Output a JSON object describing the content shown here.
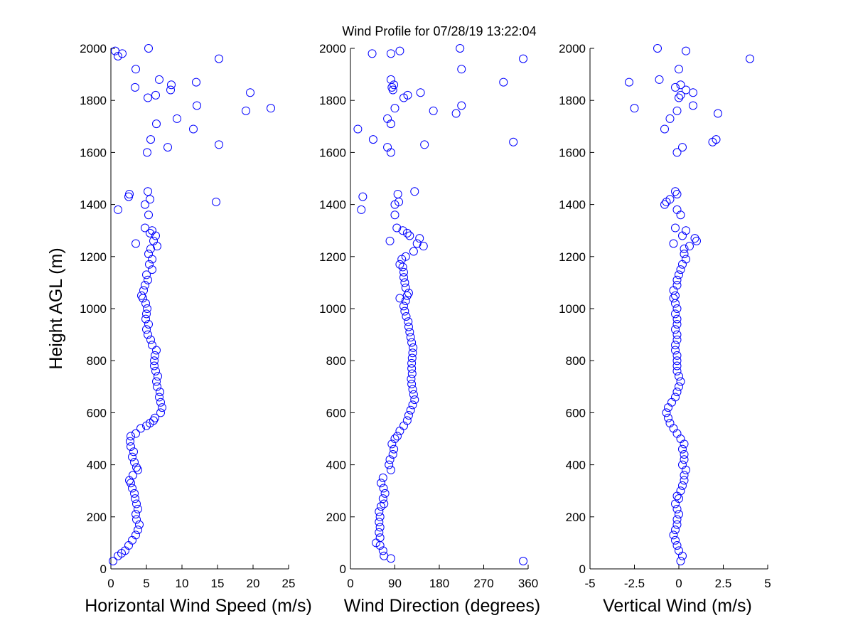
{
  "figure": {
    "title": "Wind Profile for  07/28/19 13:22:04",
    "marker_color": "#0000ff"
  },
  "chart_data": [
    {
      "type": "scatter",
      "xlabel": "Horizontal Wind Speed (m/s)",
      "ylabel": "Height AGL (m)",
      "xlim": [
        0,
        25
      ],
      "ylim": [
        0,
        2000
      ],
      "xticks": [
        0,
        5,
        10,
        15,
        20,
        25
      ],
      "xtick_labels": [
        "0",
        "5",
        "10",
        "15",
        "20",
        "25"
      ],
      "yticks": [
        0,
        200,
        400,
        600,
        800,
        1000,
        1200,
        1400,
        1600,
        1800,
        2000
      ],
      "ytick_labels": [
        "0",
        "200",
        "400",
        "600",
        "800",
        "1000",
        "1200",
        "1400",
        "1600",
        "1800",
        "2000"
      ],
      "points": [
        [
          0.3,
          30
        ],
        [
          1.0,
          50
        ],
        [
          1.5,
          60
        ],
        [
          2.0,
          70
        ],
        [
          2.5,
          90
        ],
        [
          3.0,
          110
        ],
        [
          3.5,
          130
        ],
        [
          3.8,
          150
        ],
        [
          4.0,
          170
        ],
        [
          3.6,
          190
        ],
        [
          3.5,
          210
        ],
        [
          3.8,
          230
        ],
        [
          3.6,
          250
        ],
        [
          3.4,
          270
        ],
        [
          3.3,
          290
        ],
        [
          3.0,
          310
        ],
        [
          2.8,
          330
        ],
        [
          2.6,
          340
        ],
        [
          3.1,
          360
        ],
        [
          3.8,
          380
        ],
        [
          3.6,
          390
        ],
        [
          3.3,
          410
        ],
        [
          3.0,
          430
        ],
        [
          3.2,
          450
        ],
        [
          2.8,
          470
        ],
        [
          2.7,
          490
        ],
        [
          2.8,
          510
        ],
        [
          3.5,
          520
        ],
        [
          4.2,
          540
        ],
        [
          5.0,
          550
        ],
        [
          5.5,
          560
        ],
        [
          6.0,
          570
        ],
        [
          6.2,
          580
        ],
        [
          7.0,
          600
        ],
        [
          7.2,
          620
        ],
        [
          7.0,
          640
        ],
        [
          6.8,
          660
        ],
        [
          6.9,
          680
        ],
        [
          6.5,
          700
        ],
        [
          6.4,
          720
        ],
        [
          6.6,
          740
        ],
        [
          6.3,
          760
        ],
        [
          6.1,
          780
        ],
        [
          6.1,
          800
        ],
        [
          6.2,
          820
        ],
        [
          6.4,
          840
        ],
        [
          5.8,
          860
        ],
        [
          5.6,
          880
        ],
        [
          5.2,
          900
        ],
        [
          5.0,
          920
        ],
        [
          5.3,
          940
        ],
        [
          4.9,
          960
        ],
        [
          5.0,
          980
        ],
        [
          5.1,
          1000
        ],
        [
          4.9,
          1020
        ],
        [
          4.5,
          1040
        ],
        [
          4.3,
          1050
        ],
        [
          4.6,
          1070
        ],
        [
          4.8,
          1090
        ],
        [
          5.2,
          1110
        ],
        [
          5.0,
          1130
        ],
        [
          5.8,
          1150
        ],
        [
          5.4,
          1170
        ],
        [
          5.8,
          1190
        ],
        [
          5.3,
          1210
        ],
        [
          5.6,
          1230
        ],
        [
          6.5,
          1240
        ],
        [
          6.0,
          1260
        ],
        [
          6.3,
          1280
        ],
        [
          5.5,
          1290
        ],
        [
          5.8,
          1300
        ],
        [
          4.8,
          1310
        ],
        [
          3.5,
          1250
        ],
        [
          5.3,
          1360
        ],
        [
          5.5,
          1420
        ],
        [
          5.2,
          1450
        ],
        [
          4.8,
          1400
        ],
        [
          2.5,
          1430
        ],
        [
          1.0,
          1380
        ],
        [
          2.6,
          1440
        ],
        [
          14.8,
          1410
        ],
        [
          0.6,
          1990
        ],
        [
          1.0,
          1970
        ],
        [
          1.6,
          1980
        ],
        [
          5.3,
          2000
        ],
        [
          15.2,
          1960
        ],
        [
          3.5,
          1920
        ],
        [
          6.8,
          1880
        ],
        [
          12.0,
          1870
        ],
        [
          3.4,
          1850
        ],
        [
          8.5,
          1860
        ],
        [
          8.4,
          1840
        ],
        [
          6.3,
          1820
        ],
        [
          5.2,
          1810
        ],
        [
          19.6,
          1830
        ],
        [
          12.1,
          1780
        ],
        [
          19.0,
          1760
        ],
        [
          22.5,
          1770
        ],
        [
          9.3,
          1730
        ],
        [
          6.4,
          1710
        ],
        [
          11.6,
          1690
        ],
        [
          5.6,
          1650
        ],
        [
          15.2,
          1630
        ],
        [
          8.0,
          1620
        ],
        [
          5.1,
          1600
        ]
      ]
    },
    {
      "type": "scatter",
      "xlabel": "Wind Direction (degrees)",
      "ylabel": "",
      "xlim": [
        0,
        360
      ],
      "ylim": [
        0,
        2000
      ],
      "xticks": [
        0,
        90,
        180,
        270,
        360
      ],
      "xtick_labels": [
        "0",
        "90",
        "180",
        "270",
        "360"
      ],
      "yticks": [
        0,
        200,
        400,
        600,
        800,
        1000,
        1200,
        1400,
        1600,
        1800,
        2000
      ],
      "ytick_labels": [
        "0",
        "200",
        "400",
        "600",
        "800",
        "1000",
        "1200",
        "1400",
        "1600",
        "1800",
        "2000"
      ],
      "points": [
        [
          350,
          30
        ],
        [
          82,
          40
        ],
        [
          68,
          50
        ],
        [
          66,
          70
        ],
        [
          60,
          90
        ],
        [
          52,
          100
        ],
        [
          60,
          120
        ],
        [
          58,
          140
        ],
        [
          60,
          160
        ],
        [
          58,
          180
        ],
        [
          60,
          200
        ],
        [
          58,
          220
        ],
        [
          62,
          240
        ],
        [
          68,
          250
        ],
        [
          66,
          270
        ],
        [
          70,
          290
        ],
        [
          67,
          310
        ],
        [
          62,
          330
        ],
        [
          66,
          350
        ],
        [
          82,
          380
        ],
        [
          78,
          400
        ],
        [
          80,
          420
        ],
        [
          86,
          440
        ],
        [
          88,
          460
        ],
        [
          84,
          480
        ],
        [
          90,
          500
        ],
        [
          95,
          510
        ],
        [
          100,
          530
        ],
        [
          108,
          550
        ],
        [
          115,
          570
        ],
        [
          118,
          590
        ],
        [
          122,
          610
        ],
        [
          126,
          630
        ],
        [
          130,
          650
        ],
        [
          128,
          670
        ],
        [
          126,
          690
        ],
        [
          124,
          710
        ],
        [
          123,
          730
        ],
        [
          125,
          750
        ],
        [
          124,
          770
        ],
        [
          124,
          790
        ],
        [
          125,
          810
        ],
        [
          126,
          830
        ],
        [
          127,
          850
        ],
        [
          124,
          870
        ],
        [
          122,
          890
        ],
        [
          120,
          910
        ],
        [
          118,
          930
        ],
        [
          117,
          950
        ],
        [
          113,
          970
        ],
        [
          110,
          990
        ],
        [
          108,
          1010
        ],
        [
          112,
          1030
        ],
        [
          100,
          1040
        ],
        [
          115,
          1050
        ],
        [
          118,
          1060
        ],
        [
          112,
          1080
        ],
        [
          110,
          1100
        ],
        [
          108,
          1120
        ],
        [
          108,
          1140
        ],
        [
          106,
          1160
        ],
        [
          100,
          1170
        ],
        [
          104,
          1190
        ],
        [
          112,
          1200
        ],
        [
          128,
          1220
        ],
        [
          148,
          1240
        ],
        [
          135,
          1250
        ],
        [
          140,
          1270
        ],
        [
          120,
          1280
        ],
        [
          115,
          1290
        ],
        [
          106,
          1300
        ],
        [
          94,
          1310
        ],
        [
          80,
          1260
        ],
        [
          90,
          1360
        ],
        [
          98,
          1410
        ],
        [
          90,
          1400
        ],
        [
          96,
          1440
        ],
        [
          130,
          1450
        ],
        [
          25,
          1430
        ],
        [
          22,
          1380
        ],
        [
          44,
          1980
        ],
        [
          82,
          1980
        ],
        [
          100,
          1990
        ],
        [
          222,
          2000
        ],
        [
          350,
          1960
        ],
        [
          225,
          1920
        ],
        [
          82,
          1880
        ],
        [
          310,
          1870
        ],
        [
          88,
          1860
        ],
        [
          84,
          1850
        ],
        [
          86,
          1840
        ],
        [
          116,
          1820
        ],
        [
          108,
          1810
        ],
        [
          142,
          1830
        ],
        [
          225,
          1780
        ],
        [
          90,
          1770
        ],
        [
          168,
          1760
        ],
        [
          214,
          1750
        ],
        [
          75,
          1730
        ],
        [
          82,
          1710
        ],
        [
          15,
          1690
        ],
        [
          46,
          1650
        ],
        [
          330,
          1640
        ],
        [
          150,
          1630
        ],
        [
          75,
          1620
        ],
        [
          82,
          1600
        ]
      ]
    },
    {
      "type": "scatter",
      "xlabel": "Vertical Wind (m/s)",
      "ylabel": "",
      "xlim": [
        -5,
        5
      ],
      "ylim": [
        0,
        2000
      ],
      "xticks": [
        -5,
        -2.5,
        0,
        2.5,
        5
      ],
      "xtick_labels": [
        "-5",
        "-2.5",
        "0",
        "2.5",
        "5"
      ],
      "yticks": [
        0,
        200,
        400,
        600,
        800,
        1000,
        1200,
        1400,
        1600,
        1800,
        2000
      ],
      "ytick_labels": [
        "0",
        "200",
        "400",
        "600",
        "800",
        "1000",
        "1200",
        "1400",
        "1600",
        "1800",
        "2000"
      ],
      "points": [
        [
          0.1,
          30
        ],
        [
          0.2,
          50
        ],
        [
          0.0,
          70
        ],
        [
          -0.1,
          90
        ],
        [
          -0.2,
          110
        ],
        [
          -0.3,
          130
        ],
        [
          -0.2,
          150
        ],
        [
          -0.1,
          170
        ],
        [
          -0.1,
          190
        ],
        [
          0.0,
          210
        ],
        [
          -0.1,
          230
        ],
        [
          -0.2,
          250
        ],
        [
          0.0,
          270
        ],
        [
          -0.1,
          280
        ],
        [
          0.1,
          300
        ],
        [
          0.2,
          320
        ],
        [
          0.3,
          340
        ],
        [
          0.3,
          360
        ],
        [
          0.4,
          380
        ],
        [
          0.2,
          400
        ],
        [
          0.3,
          420
        ],
        [
          0.3,
          440
        ],
        [
          0.2,
          460
        ],
        [
          0.3,
          480
        ],
        [
          0.1,
          500
        ],
        [
          -0.1,
          520
        ],
        [
          -0.3,
          540
        ],
        [
          -0.5,
          560
        ],
        [
          -0.6,
          580
        ],
        [
          -0.7,
          600
        ],
        [
          -0.6,
          620
        ],
        [
          -0.4,
          640
        ],
        [
          -0.2,
          660
        ],
        [
          -0.1,
          680
        ],
        [
          0.0,
          700
        ],
        [
          0.1,
          720
        ],
        [
          0.0,
          740
        ],
        [
          -0.1,
          760
        ],
        [
          -0.1,
          780
        ],
        [
          -0.1,
          800
        ],
        [
          -0.1,
          820
        ],
        [
          -0.2,
          840
        ],
        [
          -0.2,
          860
        ],
        [
          -0.1,
          880
        ],
        [
          -0.1,
          900
        ],
        [
          -0.2,
          920
        ],
        [
          -0.1,
          940
        ],
        [
          -0.1,
          960
        ],
        [
          -0.2,
          980
        ],
        [
          -0.1,
          1000
        ],
        [
          -0.2,
          1020
        ],
        [
          -0.3,
          1040
        ],
        [
          -0.2,
          1050
        ],
        [
          -0.3,
          1070
        ],
        [
          -0.1,
          1090
        ],
        [
          -0.1,
          1110
        ],
        [
          0.0,
          1130
        ],
        [
          0.1,
          1150
        ],
        [
          0.2,
          1170
        ],
        [
          0.4,
          1190
        ],
        [
          0.3,
          1210
        ],
        [
          0.3,
          1230
        ],
        [
          0.6,
          1240
        ],
        [
          0.9,
          1270
        ],
        [
          1.0,
          1260
        ],
        [
          0.2,
          1280
        ],
        [
          0.4,
          1300
        ],
        [
          -0.2,
          1310
        ],
        [
          -0.3,
          1250
        ],
        [
          0.1,
          1360
        ],
        [
          -0.1,
          1380
        ],
        [
          -0.5,
          1420
        ],
        [
          -0.7,
          1410
        ],
        [
          -0.8,
          1400
        ],
        [
          -0.2,
          1450
        ],
        [
          -0.1,
          1440
        ],
        [
          -1.2,
          2000
        ],
        [
          0.4,
          1990
        ],
        [
          0.0,
          1920
        ],
        [
          4.0,
          1960
        ],
        [
          -1.1,
          1880
        ],
        [
          -2.8,
          1870
        ],
        [
          0.1,
          1860
        ],
        [
          -0.2,
          1850
        ],
        [
          0.4,
          1840
        ],
        [
          0.8,
          1830
        ],
        [
          0.1,
          1820
        ],
        [
          0.0,
          1810
        ],
        [
          0.8,
          1780
        ],
        [
          -2.5,
          1770
        ],
        [
          -0.1,
          1760
        ],
        [
          2.2,
          1750
        ],
        [
          -0.5,
          1730
        ],
        [
          -0.8,
          1690
        ],
        [
          2.1,
          1650
        ],
        [
          1.9,
          1640
        ],
        [
          0.2,
          1620
        ],
        [
          -0.1,
          1600
        ]
      ]
    }
  ]
}
